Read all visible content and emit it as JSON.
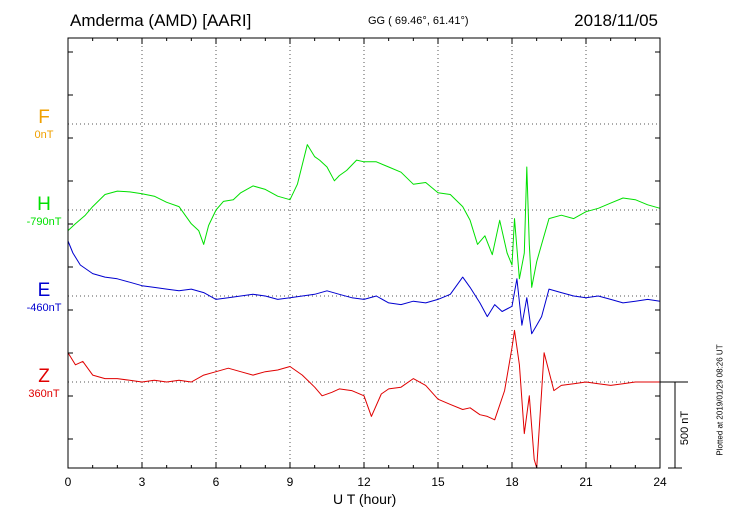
{
  "header": {
    "station": "Amderma (AMD)  [AARI]",
    "coords": "GG ( 69.46°,  61.41°)",
    "date": "2018/11/05"
  },
  "footer": {
    "plotted": "Plotted at 2019/01/29 08:26 UT"
  },
  "components": [
    {
      "key": "F",
      "letter": "F",
      "baseline": "0nT",
      "color": "#f0a000"
    },
    {
      "key": "H",
      "letter": "H",
      "baseline": "-790nT",
      "color": "#00e000"
    },
    {
      "key": "E",
      "letter": "E",
      "baseline": "-460nT",
      "color": "#0000d0"
    },
    {
      "key": "Z",
      "letter": "Z",
      "baseline": "360nT",
      "color": "#e00000"
    }
  ],
  "scale_bar": {
    "label": "500 nT",
    "value_nT": 500
  },
  "chart_data": {
    "type": "line",
    "xlabel": "U T (hour)",
    "xlim": [
      0,
      24
    ],
    "xticks": [
      0,
      3,
      6,
      9,
      12,
      15,
      18,
      21,
      24
    ],
    "grid": true,
    "series": [
      {
        "name": "H",
        "color": "#00e000",
        "unit": "nT",
        "x": [
          0,
          0.3,
          0.7,
          1,
          1.5,
          2,
          2.5,
          3,
          3.5,
          4,
          4.5,
          5,
          5.3,
          5.5,
          5.7,
          6,
          6.3,
          6.7,
          7,
          7.5,
          8,
          8.5,
          9,
          9.3,
          9.7,
          10,
          10.2,
          10.5,
          10.8,
          11,
          11.3,
          11.7,
          12,
          12.5,
          13,
          13.5,
          14,
          14.5,
          15,
          15.5,
          16,
          16.3,
          16.6,
          16.9,
          17.2,
          17.5,
          17.8,
          18,
          18.1,
          18.3,
          18.5,
          18.6,
          18.7,
          18.8,
          19,
          19.2,
          19.5,
          20,
          20.5,
          21,
          21.5,
          22,
          22.5,
          23,
          23.5,
          24
        ],
        "y": [
          -120,
          -80,
          -30,
          20,
          90,
          110,
          105,
          95,
          80,
          45,
          20,
          -80,
          -120,
          -200,
          -90,
          0,
          50,
          60,
          100,
          140,
          120,
          80,
          60,
          150,
          380,
          310,
          290,
          250,
          170,
          200,
          230,
          290,
          280,
          280,
          250,
          220,
          150,
          160,
          100,
          90,
          20,
          -60,
          -200,
          -150,
          -260,
          -60,
          -250,
          -320,
          -50,
          -400,
          -250,
          250,
          -200,
          -450,
          -300,
          -200,
          -50,
          -30,
          -50,
          -10,
          10,
          40,
          70,
          60,
          30,
          10
        ]
      },
      {
        "name": "E",
        "color": "#0000d0",
        "unit": "nT",
        "x": [
          0,
          0.2,
          0.5,
          1,
          1.5,
          2,
          2.5,
          3,
          3.5,
          4,
          4.5,
          5,
          5.5,
          6,
          6.5,
          7,
          7.5,
          8,
          8.5,
          9,
          9.5,
          10,
          10.5,
          11,
          11.5,
          12,
          12.5,
          13,
          13.5,
          14,
          14.5,
          15,
          15.5,
          16,
          16.3,
          16.7,
          17,
          17.3,
          17.6,
          18,
          18.2,
          18.4,
          18.6,
          18.8,
          19,
          19.2,
          19.5,
          20,
          20.5,
          21,
          21.5,
          22,
          22.5,
          23,
          23.5,
          24
        ],
        "y": [
          320,
          250,
          180,
          130,
          110,
          100,
          80,
          60,
          50,
          40,
          30,
          40,
          20,
          -20,
          -10,
          0,
          10,
          0,
          -20,
          -10,
          0,
          10,
          30,
          10,
          -10,
          -20,
          0,
          -40,
          -50,
          -30,
          -40,
          -20,
          10,
          110,
          50,
          -40,
          -120,
          -50,
          -90,
          -60,
          100,
          -170,
          -10,
          -220,
          -170,
          -120,
          40,
          20,
          0,
          -10,
          0,
          -20,
          -40,
          -30,
          -20,
          -30
        ]
      },
      {
        "name": "Z",
        "color": "#e00000",
        "unit": "nT",
        "x": [
          0,
          0.3,
          0.6,
          1,
          1.5,
          2,
          2.5,
          3,
          3.5,
          4,
          4.5,
          5,
          5.5,
          6,
          6.5,
          7,
          7.5,
          8,
          8.5,
          9,
          9.5,
          10,
          10.3,
          10.7,
          11,
          11.5,
          12,
          12.3,
          12.7,
          13,
          13.5,
          14,
          14.5,
          15,
          15.5,
          16,
          16.3,
          16.7,
          17,
          17.3,
          17.7,
          18,
          18.1,
          18.3,
          18.5,
          18.7,
          18.9,
          19,
          19.3,
          19.7,
          20,
          20.5,
          21,
          21.5,
          22,
          22.5,
          23,
          24
        ],
        "y": [
          170,
          100,
          120,
          40,
          20,
          20,
          10,
          0,
          10,
          0,
          10,
          0,
          40,
          60,
          80,
          60,
          40,
          60,
          70,
          90,
          40,
          -30,
          -80,
          -60,
          -40,
          -50,
          -80,
          -200,
          -70,
          -40,
          -30,
          20,
          -20,
          -100,
          -130,
          -160,
          -150,
          -190,
          -200,
          -220,
          -50,
          200,
          300,
          100,
          -300,
          -80,
          -450,
          -500,
          170,
          -50,
          -20,
          -10,
          0,
          -10,
          -20,
          -10,
          0,
          0
        ]
      }
    ]
  }
}
